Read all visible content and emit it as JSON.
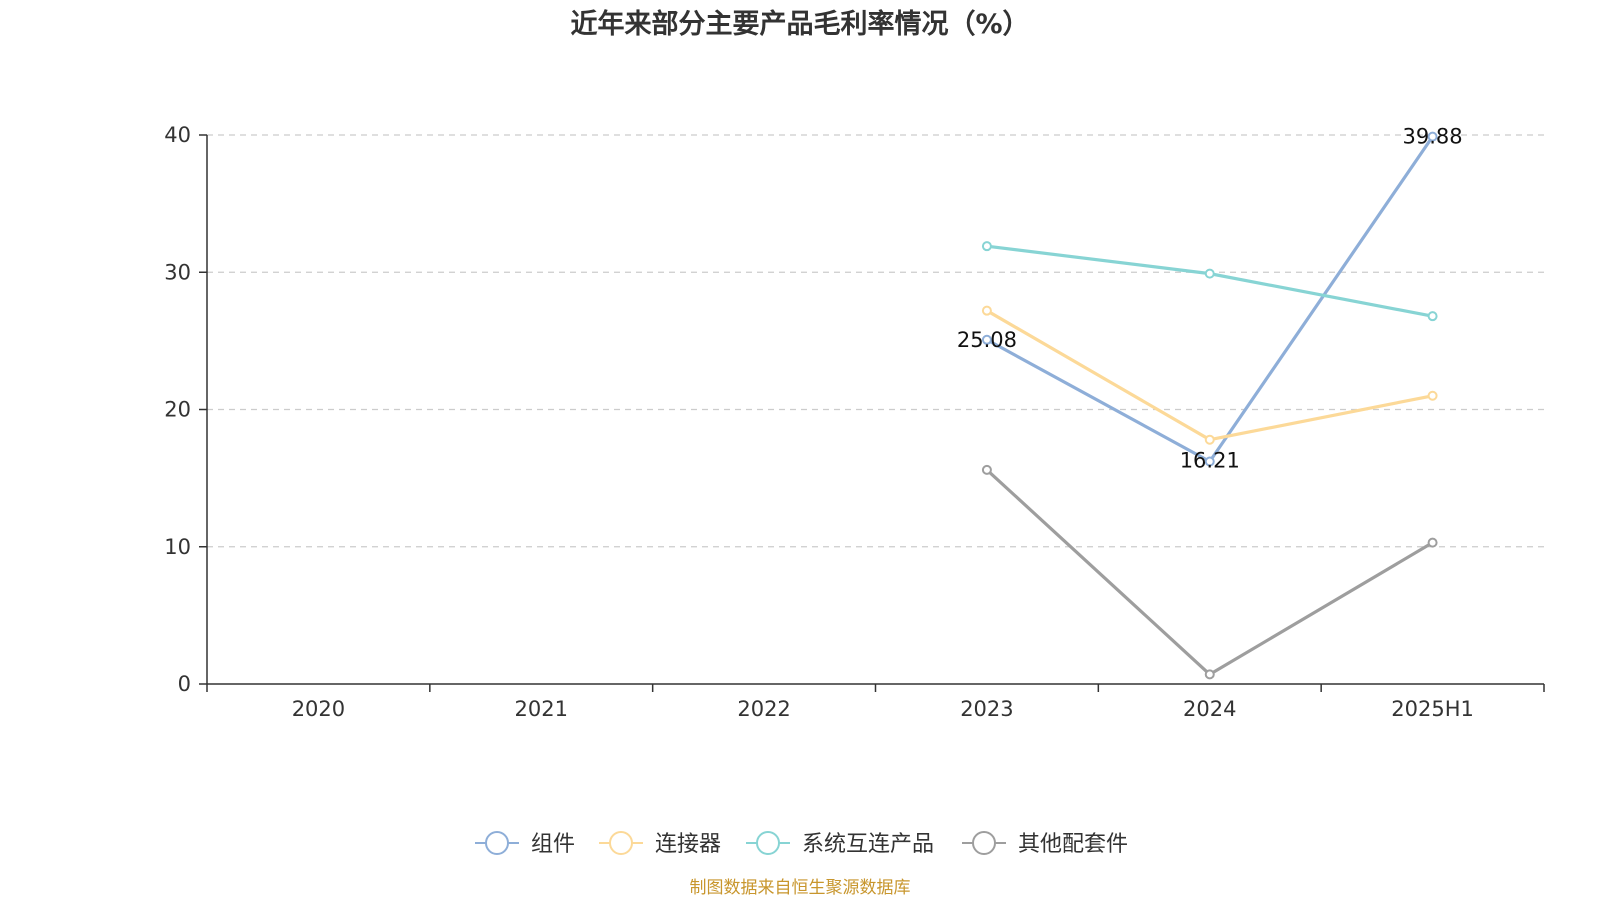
{
  "chart_data": {
    "type": "line",
    "title": "近年来部分主要产品毛利率情况（%）",
    "xlabel": "",
    "ylabel": "",
    "categories": [
      "2020",
      "2021",
      "2022",
      "2023",
      "2024",
      "2025H1"
    ],
    "ylim": [
      0,
      40
    ],
    "yticks": [
      0,
      10,
      20,
      30,
      40
    ],
    "grid": "horizontal dashed",
    "legend_position": "bottom",
    "series": [
      {
        "name": "组件",
        "color": "#8eaed8",
        "values": [
          null,
          null,
          null,
          25.08,
          16.21,
          39.88
        ],
        "labels": [
          null,
          null,
          null,
          "25.08",
          "16.21",
          "39.88"
        ]
      },
      {
        "name": "连接器",
        "color": "#fcd998",
        "values": [
          null,
          null,
          null,
          27.2,
          17.8,
          21.0
        ]
      },
      {
        "name": "系统互连产品",
        "color": "#87d4d4",
        "values": [
          null,
          null,
          null,
          31.9,
          29.9,
          26.8
        ]
      },
      {
        "name": "其他配套件",
        "color": "#9e9e9e",
        "values": [
          null,
          null,
          null,
          15.6,
          0.7,
          10.3
        ]
      }
    ]
  },
  "source_note": "制图数据来自恒生聚源数据库"
}
